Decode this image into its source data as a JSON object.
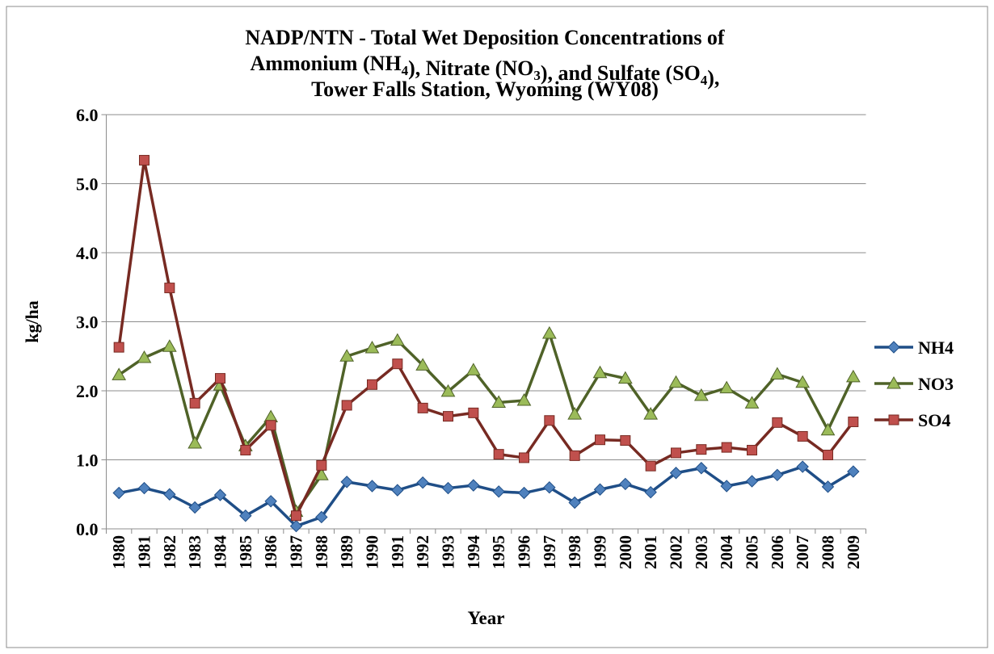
{
  "chart_data": {
    "type": "line",
    "title": [
      "NADP/NTN - Total Wet Deposition Concentrations of",
      "Ammonium (NH4), Nitrate (NO3), and Sulfate (SO4),",
      "Tower Falls Station, Wyoming (WY08)"
    ],
    "x_label": "Year",
    "y_label": "kg/ha",
    "categories": [
      "1980",
      "1981",
      "1982",
      "1983",
      "1984",
      "1985",
      "1986",
      "1987",
      "1988",
      "1989",
      "1990",
      "1991",
      "1992",
      "1993",
      "1994",
      "1995",
      "1996",
      "1997",
      "1998",
      "1999",
      "2000",
      "2001",
      "2002",
      "2003",
      "2004",
      "2005",
      "2006",
      "2007",
      "2008",
      "2009"
    ],
    "series": [
      {
        "name": "NH4",
        "color": "#1f4e87",
        "marker": "diamond",
        "marker_color": "#4f81bd",
        "values": [
          0.52,
          0.59,
          0.5,
          0.31,
          0.49,
          0.19,
          0.4,
          0.04,
          0.17,
          0.68,
          0.62,
          0.56,
          0.67,
          0.59,
          0.63,
          0.54,
          0.52,
          0.6,
          0.38,
          0.57,
          0.65,
          0.53,
          0.81,
          0.88,
          0.62,
          0.69,
          0.78,
          0.9,
          0.61,
          0.83
        ]
      },
      {
        "name": "NO3",
        "color": "#4f6228",
        "marker": "triangle",
        "marker_color": "#9bbb59",
        "values": [
          2.23,
          2.48,
          2.64,
          1.24,
          2.08,
          1.2,
          1.62,
          0.25,
          0.78,
          2.5,
          2.62,
          2.73,
          2.37,
          1.99,
          2.3,
          1.83,
          1.86,
          2.83,
          1.66,
          2.26,
          2.18,
          1.66,
          2.12,
          1.93,
          2.04,
          1.82,
          2.24,
          2.12,
          1.43,
          2.2
        ]
      },
      {
        "name": "SO4",
        "color": "#772a22",
        "marker": "square",
        "marker_color": "#c0504d",
        "values": [
          2.63,
          5.34,
          3.49,
          1.82,
          2.18,
          1.14,
          1.5,
          0.19,
          0.92,
          1.79,
          2.09,
          2.39,
          1.75,
          1.63,
          1.68,
          1.08,
          1.03,
          1.57,
          1.06,
          1.29,
          1.28,
          0.91,
          1.1,
          1.15,
          1.18,
          1.14,
          1.54,
          1.34,
          1.07,
          1.55
        ]
      }
    ],
    "ylim": [
      0,
      6
    ],
    "yticks": [
      {
        "value": 0,
        "label": "0.0"
      },
      {
        "value": 1,
        "label": "1.0"
      },
      {
        "value": 2,
        "label": "2.0"
      },
      {
        "value": 3,
        "label": "3.0"
      },
      {
        "value": 4,
        "label": "4.0"
      },
      {
        "value": 5,
        "label": "5.0"
      },
      {
        "value": 6,
        "label": "6.0"
      }
    ],
    "grid": true,
    "legend": "right"
  }
}
